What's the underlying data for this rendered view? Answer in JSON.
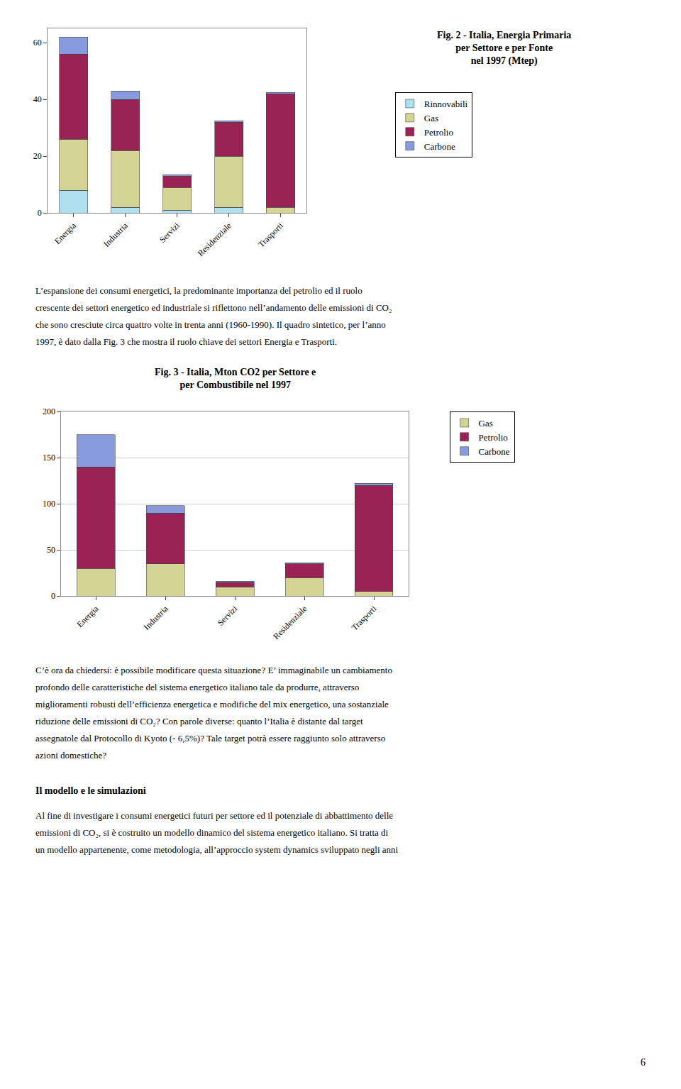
{
  "chart_data": [
    {
      "type": "bar",
      "title": "Fig. 2 - Italia, Energia Primaria\nper Settore e per Fonte\nnel 1997 (Mtep)",
      "categories": [
        "Energia",
        "Industria",
        "Servizi",
        "Residenziale",
        "Trasporti"
      ],
      "series": [
        {
          "name": "Rinnovabili",
          "color": "#aee0f0",
          "values": [
            8,
            2,
            1,
            2,
            0
          ]
        },
        {
          "name": "Gas",
          "color": "#d4d494",
          "values": [
            18,
            20,
            8,
            18,
            2
          ]
        },
        {
          "name": "Petrolio",
          "color": "#9b2255",
          "values": [
            30,
            18,
            4,
            12,
            40
          ]
        },
        {
          "name": "Carbone",
          "color": "#8899dd",
          "values": [
            6,
            3,
            0.5,
            0.5,
            0.5
          ]
        }
      ],
      "ylim": [
        0,
        65
      ],
      "yticks": [
        0,
        20,
        40,
        60
      ],
      "stacked": true,
      "grid": false,
      "legend": "right"
    },
    {
      "type": "bar",
      "title": "Fig. 3 - Italia, Mton CO2 per Settore e\nper Combustibile nel 1997",
      "categories": [
        "Energia",
        "Industria",
        "Servizi",
        "Residenziale",
        "Trasporti"
      ],
      "series": [
        {
          "name": "Gas",
          "color": "#d4d494",
          "values": [
            30,
            35,
            10,
            20,
            5
          ]
        },
        {
          "name": "Petrolio",
          "color": "#9b2255",
          "values": [
            110,
            55,
            5,
            15,
            115
          ]
        },
        {
          "name": "Carbone",
          "color": "#8899dd",
          "values": [
            35,
            8,
            1,
            1,
            2
          ]
        }
      ],
      "ylim": [
        0,
        200
      ],
      "yticks": [
        0,
        50,
        100,
        150,
        200
      ],
      "stacked": true,
      "grid": true,
      "legend": "right"
    }
  ],
  "paragraphs": [
    [
      "L’espansione dei consumi energetici, la predominante importanza del petrolio ed il ruolo",
      "crescente dei settori energetico ed industriale si riflettono nell’andamento delle emissioni di CO₂",
      "che sono cresciute circa quattro volte in trenta anni (1960-1990). Il quadro sintetico, per l’anno",
      "1997, è dato dalla Fig. 3 che mostra il ruolo chiave dei settori Energia e Trasporti."
    ],
    [
      "C’è ora da chiedersi: è possibile modificare questa situazione? E’ immaginabile un cambiamento",
      "profondo delle caratteristiche del sistema energetico italiano tale da produrre, attraverso",
      "miglioramenti robusti dell’efficienza energetica e modifiche del mix energetico, una sostanziale",
      "riduzione delle emissioni di CO₂? Con parole diverse: quanto l’Italia è distante dal target",
      "assegnatole dal Protocollo di Kyoto (- 6,5%)? Tale target potrà essere raggiunto solo attraverso",
      "azioni domestiche?"
    ],
    [
      "Al fine di investigare i consumi energetici futuri per settore ed il potenziale di abbattimento delle",
      "emissioni di CO₂, si è costruito un modello dinamico del sistema energetico italiano. Si tratta di",
      "un modello appartenente, come metodologia, all’approccio system dynamics sviluppato negli anni"
    ]
  ],
  "heading": "Il modello e le simulazioni",
  "page_number": "6"
}
